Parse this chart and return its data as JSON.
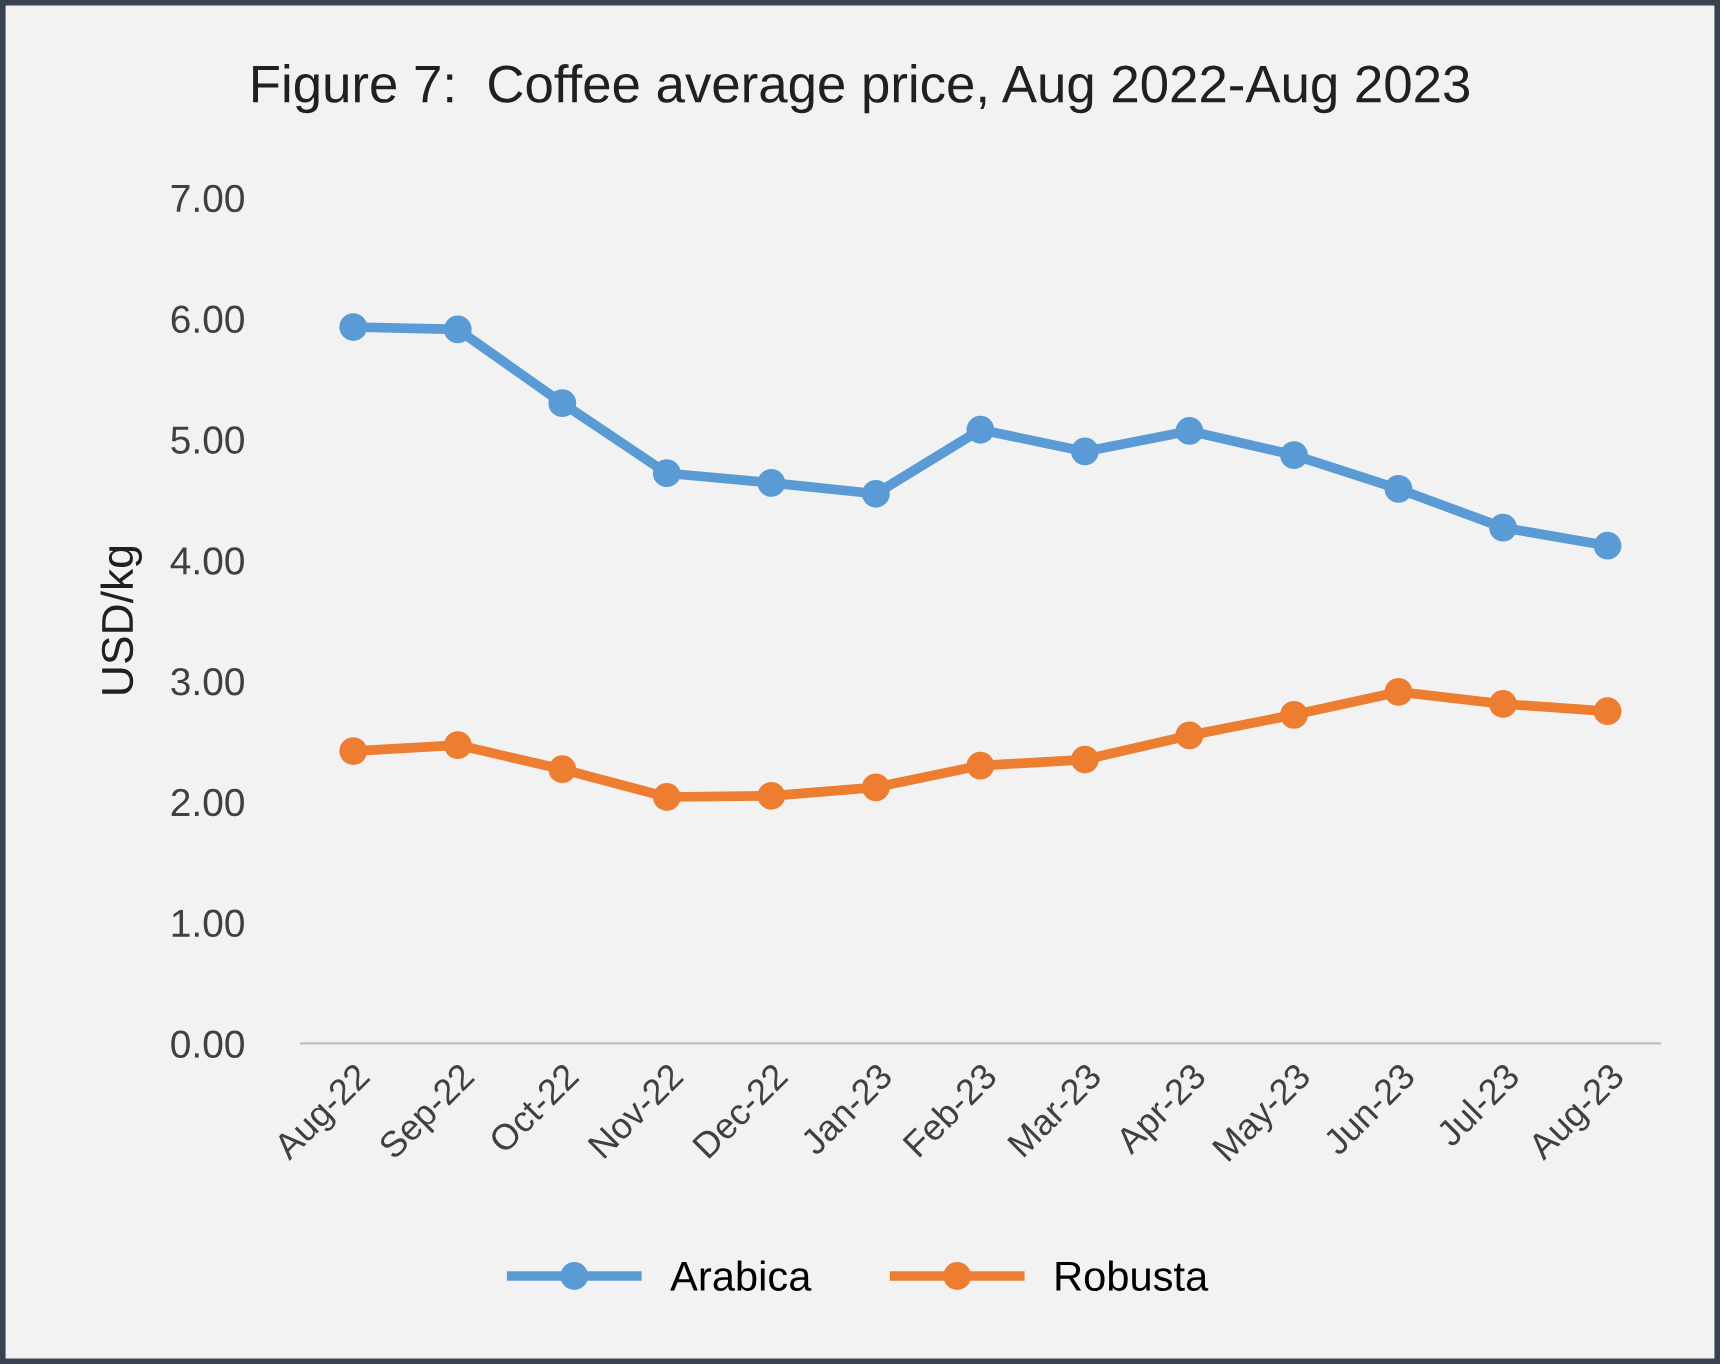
{
  "chart_data": {
    "type": "line",
    "title": "Figure 7:  Coffee average price, Aug 2022-Aug 2023",
    "ylabel": "USD/kg",
    "categories": [
      "Aug-22",
      "Sep-22",
      "Oct-22",
      "Nov-22",
      "Dec-22",
      "Jan-23",
      "Feb-23",
      "Mar-23",
      "Apr-23",
      "May-23",
      "Jun-23",
      "Jul-23",
      "Aug-23"
    ],
    "series": [
      {
        "name": "Arabica",
        "color": "#5b9bd5",
        "values": [
          5.93,
          5.91,
          5.3,
          4.72,
          4.64,
          4.55,
          5.08,
          4.9,
          5.07,
          4.87,
          4.59,
          4.27,
          4.12
        ]
      },
      {
        "name": "Robusta",
        "color": "#ed7d31",
        "values": [
          2.42,
          2.47,
          2.27,
          2.04,
          2.05,
          2.12,
          2.3,
          2.35,
          2.55,
          2.72,
          2.91,
          2.81,
          2.75
        ]
      }
    ],
    "ylim": [
      0,
      7
    ],
    "yticks": [
      {
        "value": 0,
        "label": "0.00"
      },
      {
        "value": 1,
        "label": "1.00"
      },
      {
        "value": 2,
        "label": "2.00"
      },
      {
        "value": 3,
        "label": "3.00"
      },
      {
        "value": 4,
        "label": "4.00"
      },
      {
        "value": 5,
        "label": "5.00"
      },
      {
        "value": 6,
        "label": "6.00"
      },
      {
        "value": 7,
        "label": "7.00"
      }
    ],
    "grid": false,
    "legend": "bottom",
    "marker": "circle",
    "line_style": "solid"
  }
}
